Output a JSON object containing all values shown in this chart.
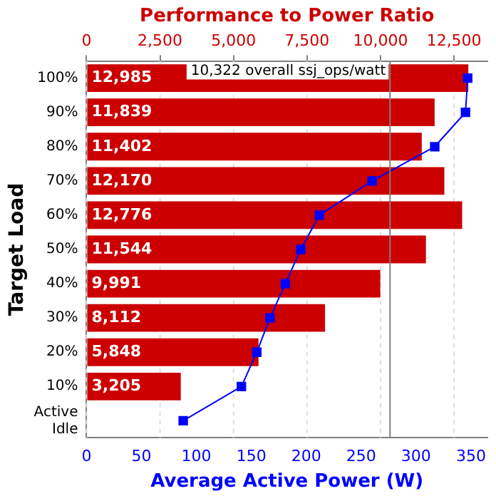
{
  "chart_data": {
    "type": "bar",
    "orientation": "horizontal",
    "x2label": "Performance to Power Ratio",
    "xlabel": "Average Active Power (W)",
    "ylabel": "Target Load",
    "categories": [
      "100%",
      "90%",
      "80%",
      "70%",
      "60%",
      "50%",
      "40%",
      "30%",
      "20%",
      "10%",
      "Active Idle"
    ],
    "series": [
      {
        "axis": "x2",
        "color": "#cc0000",
        "values": [
          12985,
          11839,
          11402,
          12170,
          12776,
          11544,
          9991,
          8112,
          5848,
          3205,
          null
        ],
        "value_labels": [
          "12,985",
          "11,839",
          "11,402",
          "12,170",
          "12,776",
          "11,544",
          "9,991",
          "8,112",
          "5,848",
          "3,205",
          null
        ]
      },
      {
        "type": "line",
        "color": "#0000ff",
        "marker": "square",
        "values": [
          347,
          345,
          317,
          260,
          212,
          195,
          181,
          167,
          155,
          141,
          88
        ]
      }
    ],
    "xlim": [
      0,
      365
    ],
    "xticks": [
      0,
      50,
      100,
      150,
      200,
      250,
      300,
      350
    ],
    "x2lim": [
      0,
      13636
    ],
    "x2ticks": [
      0,
      {
        "value": 2500,
        "label": "2,500"
      },
      {
        "value": 5000,
        "label": "5,000"
      },
      {
        "value": 7500,
        "label": "7,500"
      },
      {
        "value": 10000,
        "label": "10,000"
      },
      {
        "value": 12500,
        "label": "12,500"
      }
    ],
    "ref_lines": [
      {
        "axis": "x2",
        "value": 10322,
        "label": "10,322 overall ssj_ops/watt",
        "color": "#808080"
      }
    ],
    "grid": "x2",
    "legend": false
  }
}
